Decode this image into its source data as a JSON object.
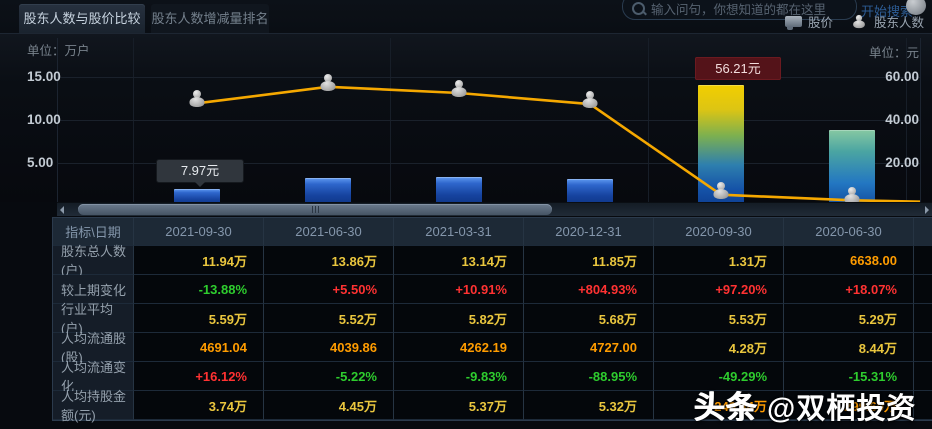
{
  "colors": {
    "yellow": "#eac63e",
    "orange": "#ff9c00",
    "red": "#ff3232",
    "green": "#2ecc2e",
    "accent_line": "#f5a800",
    "bar_blue": "#1c50b4",
    "tooltip_dark_bg": "#30363d",
    "tooltip_red_bg": "#541319"
  },
  "tabs": [
    {
      "label": "股东人数与股价比较",
      "active": true
    },
    {
      "label": "股东人数增减量排名",
      "active": false
    }
  ],
  "search": {
    "placeholder": "输入问句，你想知道的都在这里",
    "button": "开始搜索"
  },
  "legend": {
    "price_label": "股价",
    "holders_label": "股东人数"
  },
  "units": {
    "left": "单位：万户",
    "right": "单位：元"
  },
  "tooltips": {
    "first": "7.97元",
    "peak": "56.21元"
  },
  "chart_data": {
    "type": "bar",
    "categories": [
      "2021-09-30",
      "2021-06-30",
      "2021-03-31",
      "2020-12-31",
      "2020-09-30",
      "2020-06-30"
    ],
    "series": [
      {
        "name": "股价",
        "type": "bar",
        "axis": "right",
        "unit": "元",
        "values": [
          7.97,
          13.0,
          13.45,
          12.55,
          56.21,
          35.4
        ],
        "labeled_points": {
          "0": "7.97元",
          "4": "56.21元"
        }
      },
      {
        "name": "股东人数",
        "type": "line",
        "axis": "left",
        "unit": "万户",
        "values": [
          11.94,
          13.86,
          13.14,
          11.85,
          1.31,
          0.66
        ]
      }
    ],
    "left_axis": {
      "title": "单位：万户",
      "tick_values": [
        15,
        10,
        5
      ],
      "tick_labels": [
        "15.00",
        "10.00",
        "5.00"
      ],
      "range": [
        0,
        19
      ]
    },
    "right_axis": {
      "title": "单位：元",
      "tick_values": [
        60,
        40,
        20
      ],
      "tick_labels": [
        "60.00",
        "40.00",
        "20.00"
      ],
      "range": [
        0,
        76
      ]
    },
    "grid": true,
    "legend_position": "top-right",
    "title": "股东人数与股价比较"
  },
  "table": {
    "header": [
      "指标\\日期",
      "2021-09-30",
      "2021-06-30",
      "2021-03-31",
      "2020-12-31",
      "2020-09-30",
      "2020-06-30"
    ],
    "rows": [
      {
        "label": "股东总人数(户)",
        "cells": [
          {
            "v": "11.94万",
            "c": "yellow"
          },
          {
            "v": "13.86万",
            "c": "yellow"
          },
          {
            "v": "13.14万",
            "c": "yellow"
          },
          {
            "v": "11.85万",
            "c": "yellow"
          },
          {
            "v": "1.31万",
            "c": "yellow"
          },
          {
            "v": "6638.00",
            "c": "orange"
          }
        ]
      },
      {
        "label": "较上期变化",
        "cells": [
          {
            "v": "-13.88%",
            "c": "green"
          },
          {
            "v": "+5.50%",
            "c": "red"
          },
          {
            "v": "+10.91%",
            "c": "red"
          },
          {
            "v": "+804.93%",
            "c": "red"
          },
          {
            "v": "+97.20%",
            "c": "red"
          },
          {
            "v": "+18.07%",
            "c": "red"
          }
        ]
      },
      {
        "label": "行业平均(户)",
        "cells": [
          {
            "v": "5.59万",
            "c": "yellow"
          },
          {
            "v": "5.52万",
            "c": "yellow"
          },
          {
            "v": "5.82万",
            "c": "yellow"
          },
          {
            "v": "5.68万",
            "c": "yellow"
          },
          {
            "v": "5.53万",
            "c": "yellow"
          },
          {
            "v": "5.29万",
            "c": "yellow"
          }
        ]
      },
      {
        "label": "人均流通股(股)",
        "cells": [
          {
            "v": "4691.04",
            "c": "orange"
          },
          {
            "v": "4039.86",
            "c": "orange"
          },
          {
            "v": "4262.19",
            "c": "orange"
          },
          {
            "v": "4727.00",
            "c": "orange"
          },
          {
            "v": "4.28万",
            "c": "yellow"
          },
          {
            "v": "8.44万",
            "c": "yellow"
          }
        ]
      },
      {
        "label": "人均流通变化",
        "cells": [
          {
            "v": "+16.12%",
            "c": "red"
          },
          {
            "v": "-5.22%",
            "c": "green"
          },
          {
            "v": "-9.83%",
            "c": "green"
          },
          {
            "v": "-88.95%",
            "c": "green"
          },
          {
            "v": "-49.29%",
            "c": "green"
          },
          {
            "v": "-15.31%",
            "c": "green"
          }
        ]
      },
      {
        "label": "人均持股金额(元)",
        "cells": [
          {
            "v": "3.74万",
            "c": "yellow"
          },
          {
            "v": "4.45万",
            "c": "yellow"
          },
          {
            "v": "5.37万",
            "c": "yellow"
          },
          {
            "v": "5.32万",
            "c": "yellow"
          },
          {
            "v": "240.44万",
            "c": "orange"
          },
          {
            "v": "299.60万",
            "c": "orange"
          }
        ]
      }
    ]
  },
  "watermark": {
    "bold": "头条",
    "rest": " @双栖投资"
  }
}
